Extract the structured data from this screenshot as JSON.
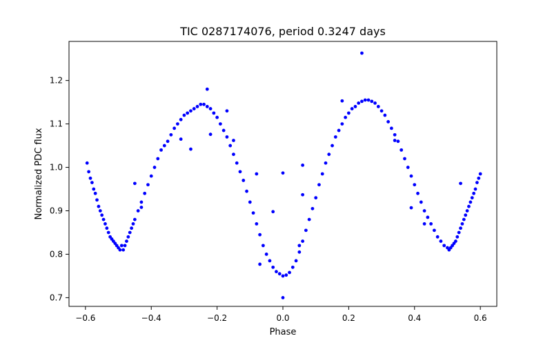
{
  "chart_data": {
    "type": "scatter",
    "title": "TIC 0287174076, period 0.3247 days",
    "xlabel": "Phase",
    "ylabel": "Normalized PDC flux",
    "xlim": [
      -0.65,
      0.65
    ],
    "ylim": [
      0.68,
      1.29
    ],
    "xticks": [
      -0.6,
      -0.4,
      -0.2,
      0.0,
      0.2,
      0.4,
      0.6
    ],
    "xtick_labels": [
      "−0.6",
      "−0.4",
      "−0.2",
      "0.0",
      "0.2",
      "0.4",
      "0.6"
    ],
    "yticks": [
      0.7,
      0.8,
      0.9,
      1.0,
      1.1,
      1.2
    ],
    "ytick_labels": [
      "0.7",
      "0.8",
      "0.9",
      "1.0",
      "1.1",
      "1.2"
    ],
    "grid": false,
    "marker_color": "#0000ff",
    "series": [
      {
        "points": [
          [
            -0.595,
            1.01
          ],
          [
            -0.59,
            0.99
          ],
          [
            -0.585,
            0.975
          ],
          [
            -0.58,
            0.965
          ],
          [
            -0.575,
            0.95
          ],
          [
            -0.57,
            0.94
          ],
          [
            -0.565,
            0.925
          ],
          [
            -0.56,
            0.91
          ],
          [
            -0.555,
            0.9
          ],
          [
            -0.55,
            0.89
          ],
          [
            -0.545,
            0.88
          ],
          [
            -0.54,
            0.87
          ],
          [
            -0.535,
            0.86
          ],
          [
            -0.53,
            0.85
          ],
          [
            -0.525,
            0.84
          ],
          [
            -0.52,
            0.835
          ],
          [
            -0.515,
            0.83
          ],
          [
            -0.51,
            0.825
          ],
          [
            -0.505,
            0.82
          ],
          [
            -0.5,
            0.815
          ],
          [
            -0.495,
            0.81
          ],
          [
            -0.49,
            0.82
          ],
          [
            -0.485,
            0.81
          ],
          [
            -0.48,
            0.82
          ],
          [
            -0.475,
            0.83
          ],
          [
            -0.47,
            0.84
          ],
          [
            -0.465,
            0.85
          ],
          [
            -0.46,
            0.86
          ],
          [
            -0.455,
            0.87
          ],
          [
            -0.45,
            0.88
          ],
          [
            -0.44,
            0.9
          ],
          [
            -0.43,
            0.92
          ],
          [
            -0.42,
            0.94
          ],
          [
            -0.41,
            0.96
          ],
          [
            -0.4,
            0.98
          ],
          [
            -0.39,
            1.0
          ],
          [
            -0.38,
            1.02
          ],
          [
            -0.37,
            1.04
          ],
          [
            -0.36,
            1.05
          ],
          [
            -0.35,
            1.06
          ],
          [
            -0.34,
            1.075
          ],
          [
            -0.33,
            1.09
          ],
          [
            -0.32,
            1.1
          ],
          [
            -0.31,
            1.11
          ],
          [
            -0.3,
            1.12
          ],
          [
            -0.29,
            1.125
          ],
          [
            -0.28,
            1.13
          ],
          [
            -0.27,
            1.135
          ],
          [
            -0.26,
            1.14
          ],
          [
            -0.25,
            1.145
          ],
          [
            -0.24,
            1.145
          ],
          [
            -0.23,
            1.14
          ],
          [
            -0.22,
            1.135
          ],
          [
            -0.21,
            1.125
          ],
          [
            -0.2,
            1.115
          ],
          [
            -0.19,
            1.1
          ],
          [
            -0.18,
            1.085
          ],
          [
            -0.17,
            1.07
          ],
          [
            -0.16,
            1.05
          ],
          [
            -0.15,
            1.03
          ],
          [
            -0.14,
            1.01
          ],
          [
            -0.13,
            0.99
          ],
          [
            -0.12,
            0.97
          ],
          [
            -0.11,
            0.945
          ],
          [
            -0.1,
            0.92
          ],
          [
            -0.09,
            0.895
          ],
          [
            -0.08,
            0.87
          ],
          [
            -0.07,
            0.845
          ],
          [
            -0.06,
            0.82
          ],
          [
            -0.05,
            0.8
          ],
          [
            -0.04,
            0.785
          ],
          [
            -0.03,
            0.77
          ],
          [
            -0.02,
            0.76
          ],
          [
            -0.01,
            0.755
          ],
          [
            0.0,
            0.75
          ],
          [
            0.01,
            0.752
          ],
          [
            0.02,
            0.758
          ],
          [
            0.03,
            0.77
          ],
          [
            0.04,
            0.785
          ],
          [
            0.05,
            0.805
          ],
          [
            0.06,
            0.83
          ],
          [
            0.07,
            0.855
          ],
          [
            0.08,
            0.88
          ],
          [
            0.09,
            0.905
          ],
          [
            0.1,
            0.93
          ],
          [
            0.11,
            0.96
          ],
          [
            0.12,
            0.985
          ],
          [
            0.13,
            1.01
          ],
          [
            0.14,
            1.03
          ],
          [
            0.15,
            1.05
          ],
          [
            0.16,
            1.07
          ],
          [
            0.17,
            1.085
          ],
          [
            0.18,
            1.1
          ],
          [
            0.19,
            1.115
          ],
          [
            0.2,
            1.125
          ],
          [
            0.21,
            1.135
          ],
          [
            0.22,
            1.14
          ],
          [
            0.23,
            1.148
          ],
          [
            0.24,
            1.152
          ],
          [
            0.25,
            1.155
          ],
          [
            0.26,
            1.155
          ],
          [
            0.27,
            1.152
          ],
          [
            0.28,
            1.148
          ],
          [
            0.29,
            1.14
          ],
          [
            0.3,
            1.13
          ],
          [
            0.31,
            1.12
          ],
          [
            0.32,
            1.105
          ],
          [
            0.33,
            1.09
          ],
          [
            0.34,
            1.075
          ],
          [
            0.35,
            1.06
          ],
          [
            0.36,
            1.04
          ],
          [
            0.37,
            1.02
          ],
          [
            0.38,
            1.0
          ],
          [
            0.39,
            0.98
          ],
          [
            0.4,
            0.96
          ],
          [
            0.41,
            0.94
          ],
          [
            0.42,
            0.92
          ],
          [
            0.43,
            0.9
          ],
          [
            0.44,
            0.885
          ],
          [
            0.45,
            0.87
          ],
          [
            0.46,
            0.855
          ],
          [
            0.47,
            0.84
          ],
          [
            0.48,
            0.83
          ],
          [
            0.49,
            0.82
          ],
          [
            0.5,
            0.815
          ],
          [
            0.505,
            0.81
          ],
          [
            0.51,
            0.815
          ],
          [
            0.515,
            0.82
          ],
          [
            0.52,
            0.825
          ],
          [
            0.525,
            0.83
          ],
          [
            0.53,
            0.84
          ],
          [
            0.535,
            0.85
          ],
          [
            0.54,
            0.86
          ],
          [
            0.545,
            0.87
          ],
          [
            0.55,
            0.88
          ],
          [
            0.555,
            0.89
          ],
          [
            0.56,
            0.9
          ],
          [
            0.565,
            0.91
          ],
          [
            0.57,
            0.92
          ],
          [
            0.575,
            0.93
          ],
          [
            0.58,
            0.94
          ],
          [
            0.585,
            0.95
          ],
          [
            0.59,
            0.965
          ],
          [
            0.595,
            0.975
          ],
          [
            0.6,
            0.985
          ],
          [
            -0.45,
            0.963
          ],
          [
            -0.43,
            0.908
          ],
          [
            -0.31,
            1.065
          ],
          [
            -0.28,
            1.042
          ],
          [
            -0.23,
            1.18
          ],
          [
            -0.22,
            1.076
          ],
          [
            -0.17,
            1.13
          ],
          [
            -0.15,
            1.062
          ],
          [
            -0.08,
            0.985
          ],
          [
            -0.07,
            0.777
          ],
          [
            -0.03,
            0.898
          ],
          [
            0.0,
            0.7
          ],
          [
            0.0,
            0.987
          ],
          [
            0.06,
            1.005
          ],
          [
            0.06,
            0.937
          ],
          [
            0.05,
            0.82
          ],
          [
            0.24,
            1.263
          ],
          [
            0.18,
            1.153
          ],
          [
            0.34,
            1.062
          ],
          [
            0.39,
            0.907
          ],
          [
            0.54,
            0.963
          ],
          [
            0.43,
            0.87
          ]
        ]
      }
    ]
  }
}
